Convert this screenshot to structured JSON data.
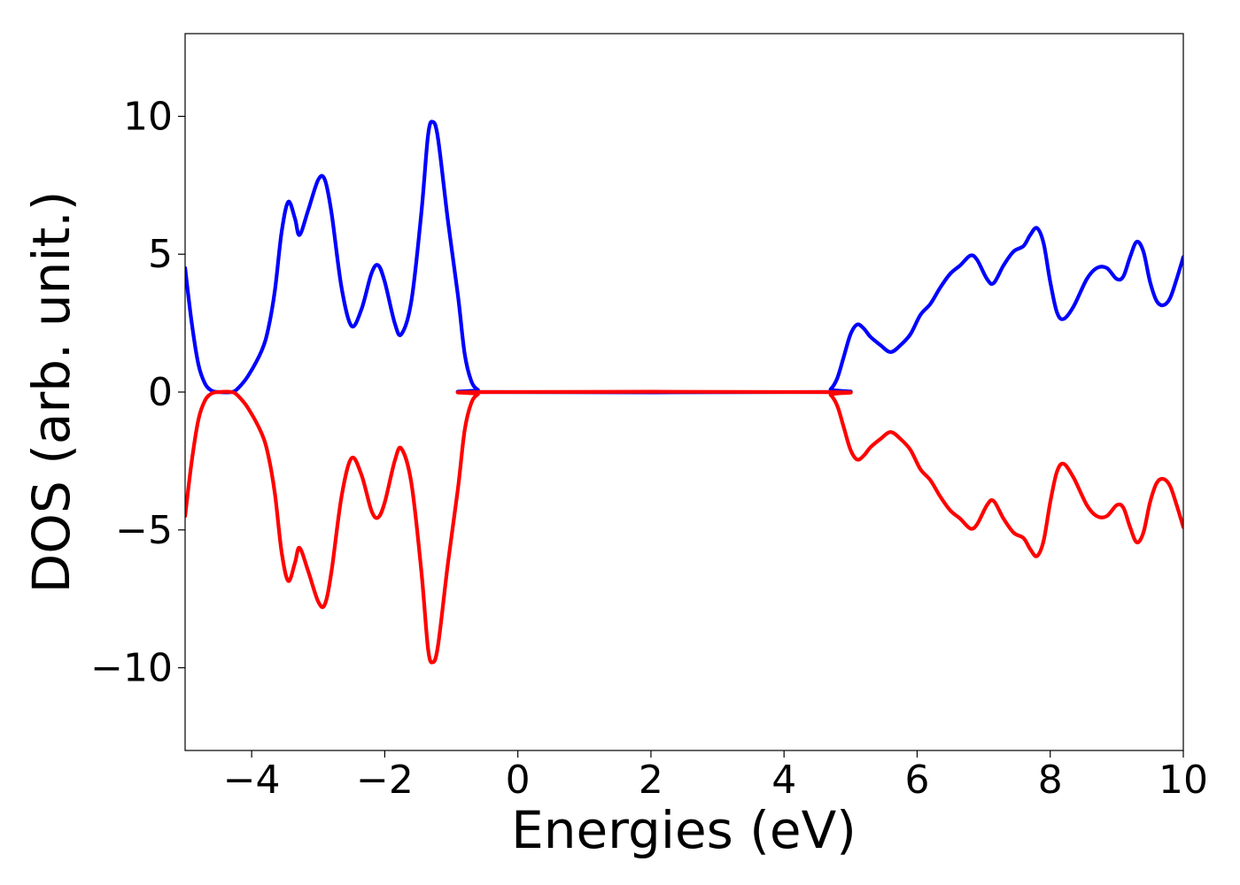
{
  "chart_data": {
    "type": "line",
    "xlabel": "Energies (eV)",
    "ylabel": "DOS (arb. unit.)",
    "xlim": [
      -5,
      10
    ],
    "ylim": [
      -13,
      13
    ],
    "xticks": [
      -4,
      -2,
      0,
      2,
      4,
      6,
      8,
      10
    ],
    "xtick_labels": [
      "−4",
      "−2",
      "0",
      "2",
      "4",
      "6",
      "8",
      "10"
    ],
    "yticks": [
      10,
      5,
      0,
      -5,
      -10
    ],
    "ytick_labels": [
      "10",
      "5",
      "0",
      "−5",
      "−10"
    ],
    "grid": false,
    "legend": "none",
    "series": [
      {
        "color": "#0000ff",
        "points": [
          [
            -5.0,
            4.5
          ],
          [
            -4.9,
            2.5
          ],
          [
            -4.8,
            1.0
          ],
          [
            -4.7,
            0.3
          ],
          [
            -4.6,
            0.05
          ],
          [
            -4.5,
            0.0
          ],
          [
            -4.3,
            0.0
          ],
          [
            -4.2,
            0.15
          ],
          [
            -4.05,
            0.6
          ],
          [
            -3.85,
            1.5
          ],
          [
            -3.75,
            2.3
          ],
          [
            -3.65,
            3.7
          ],
          [
            -3.55,
            5.8
          ],
          [
            -3.45,
            6.9
          ],
          [
            -3.35,
            6.3
          ],
          [
            -3.28,
            5.7
          ],
          [
            -3.15,
            6.6
          ],
          [
            -3.0,
            7.7
          ],
          [
            -2.9,
            7.7
          ],
          [
            -2.8,
            6.5
          ],
          [
            -2.65,
            3.8
          ],
          [
            -2.5,
            2.4
          ],
          [
            -2.35,
            3.0
          ],
          [
            -2.2,
            4.3
          ],
          [
            -2.1,
            4.6
          ],
          [
            -2.0,
            4.0
          ],
          [
            -1.85,
            2.5
          ],
          [
            -1.75,
            2.1
          ],
          [
            -1.6,
            3.3
          ],
          [
            -1.45,
            6.5
          ],
          [
            -1.35,
            9.3
          ],
          [
            -1.28,
            9.8
          ],
          [
            -1.2,
            9.2
          ],
          [
            -1.05,
            6.2
          ],
          [
            -0.9,
            3.5
          ],
          [
            -0.8,
            1.4
          ],
          [
            -0.7,
            0.4
          ],
          [
            -0.6,
            0.08
          ],
          [
            -0.5,
            0.0
          ],
          [
            4.6,
            0.0
          ],
          [
            4.7,
            0.1
          ],
          [
            4.8,
            0.5
          ],
          [
            4.9,
            1.3
          ],
          [
            5.0,
            2.1
          ],
          [
            5.1,
            2.45
          ],
          [
            5.2,
            2.3
          ],
          [
            5.3,
            2.0
          ],
          [
            5.45,
            1.7
          ],
          [
            5.6,
            1.45
          ],
          [
            5.75,
            1.7
          ],
          [
            5.9,
            2.1
          ],
          [
            6.05,
            2.8
          ],
          [
            6.2,
            3.2
          ],
          [
            6.35,
            3.8
          ],
          [
            6.5,
            4.3
          ],
          [
            6.65,
            4.6
          ],
          [
            6.8,
            4.95
          ],
          [
            6.9,
            4.8
          ],
          [
            7.05,
            4.1
          ],
          [
            7.15,
            3.95
          ],
          [
            7.3,
            4.6
          ],
          [
            7.45,
            5.1
          ],
          [
            7.6,
            5.3
          ],
          [
            7.7,
            5.7
          ],
          [
            7.8,
            5.95
          ],
          [
            7.9,
            5.4
          ],
          [
            8.0,
            4.0
          ],
          [
            8.1,
            2.9
          ],
          [
            8.2,
            2.65
          ],
          [
            8.35,
            3.1
          ],
          [
            8.55,
            4.1
          ],
          [
            8.7,
            4.5
          ],
          [
            8.85,
            4.5
          ],
          [
            9.0,
            4.1
          ],
          [
            9.1,
            4.2
          ],
          [
            9.2,
            4.9
          ],
          [
            9.3,
            5.45
          ],
          [
            9.4,
            5.1
          ],
          [
            9.5,
            4.0
          ],
          [
            9.6,
            3.3
          ],
          [
            9.7,
            3.15
          ],
          [
            9.8,
            3.4
          ],
          [
            9.9,
            4.1
          ],
          [
            10.0,
            4.9
          ]
        ]
      },
      {
        "color": "#ff0000",
        "points": [
          [
            -5.0,
            -4.5
          ],
          [
            -4.9,
            -2.5
          ],
          [
            -4.8,
            -1.0
          ],
          [
            -4.7,
            -0.3
          ],
          [
            -4.6,
            -0.05
          ],
          [
            -4.5,
            0.0
          ],
          [
            -4.3,
            0.0
          ],
          [
            -4.2,
            -0.15
          ],
          [
            -4.05,
            -0.6
          ],
          [
            -3.85,
            -1.5
          ],
          [
            -3.75,
            -2.3
          ],
          [
            -3.65,
            -3.7
          ],
          [
            -3.55,
            -5.8
          ],
          [
            -3.45,
            -6.85
          ],
          [
            -3.35,
            -6.2
          ],
          [
            -3.28,
            -5.65
          ],
          [
            -3.15,
            -6.5
          ],
          [
            -3.0,
            -7.6
          ],
          [
            -2.9,
            -7.7
          ],
          [
            -2.8,
            -6.5
          ],
          [
            -2.65,
            -3.8
          ],
          [
            -2.5,
            -2.4
          ],
          [
            -2.35,
            -3.0
          ],
          [
            -2.2,
            -4.3
          ],
          [
            -2.1,
            -4.55
          ],
          [
            -2.0,
            -4.0
          ],
          [
            -1.85,
            -2.5
          ],
          [
            -1.75,
            -2.05
          ],
          [
            -1.6,
            -3.3
          ],
          [
            -1.45,
            -6.5
          ],
          [
            -1.35,
            -9.3
          ],
          [
            -1.28,
            -9.8
          ],
          [
            -1.2,
            -9.2
          ],
          [
            -1.05,
            -6.2
          ],
          [
            -0.9,
            -3.5
          ],
          [
            -0.8,
            -1.4
          ],
          [
            -0.7,
            -0.4
          ],
          [
            -0.6,
            -0.08
          ],
          [
            -0.5,
            0.0
          ],
          [
            4.6,
            0.0
          ],
          [
            4.7,
            -0.1
          ],
          [
            4.8,
            -0.5
          ],
          [
            4.9,
            -1.3
          ],
          [
            5.0,
            -2.1
          ],
          [
            5.1,
            -2.45
          ],
          [
            5.2,
            -2.3
          ],
          [
            5.3,
            -2.0
          ],
          [
            5.45,
            -1.7
          ],
          [
            5.6,
            -1.45
          ],
          [
            5.75,
            -1.7
          ],
          [
            5.9,
            -2.1
          ],
          [
            6.05,
            -2.8
          ],
          [
            6.2,
            -3.2
          ],
          [
            6.35,
            -3.8
          ],
          [
            6.5,
            -4.3
          ],
          [
            6.65,
            -4.6
          ],
          [
            6.8,
            -4.95
          ],
          [
            6.9,
            -4.8
          ],
          [
            7.05,
            -4.1
          ],
          [
            7.15,
            -3.95
          ],
          [
            7.3,
            -4.6
          ],
          [
            7.45,
            -5.1
          ],
          [
            7.6,
            -5.3
          ],
          [
            7.7,
            -5.7
          ],
          [
            7.8,
            -5.95
          ],
          [
            7.9,
            -5.4
          ],
          [
            8.0,
            -4.0
          ],
          [
            8.1,
            -2.9
          ],
          [
            8.2,
            -2.6
          ],
          [
            8.35,
            -3.1
          ],
          [
            8.55,
            -4.1
          ],
          [
            8.7,
            -4.5
          ],
          [
            8.85,
            -4.5
          ],
          [
            9.0,
            -4.1
          ],
          [
            9.1,
            -4.2
          ],
          [
            9.2,
            -4.9
          ],
          [
            9.3,
            -5.45
          ],
          [
            9.4,
            -5.1
          ],
          [
            9.5,
            -4.0
          ],
          [
            9.6,
            -3.3
          ],
          [
            9.7,
            -3.15
          ],
          [
            9.8,
            -3.4
          ],
          [
            9.9,
            -4.1
          ],
          [
            10.0,
            -4.9
          ]
        ]
      }
    ]
  }
}
